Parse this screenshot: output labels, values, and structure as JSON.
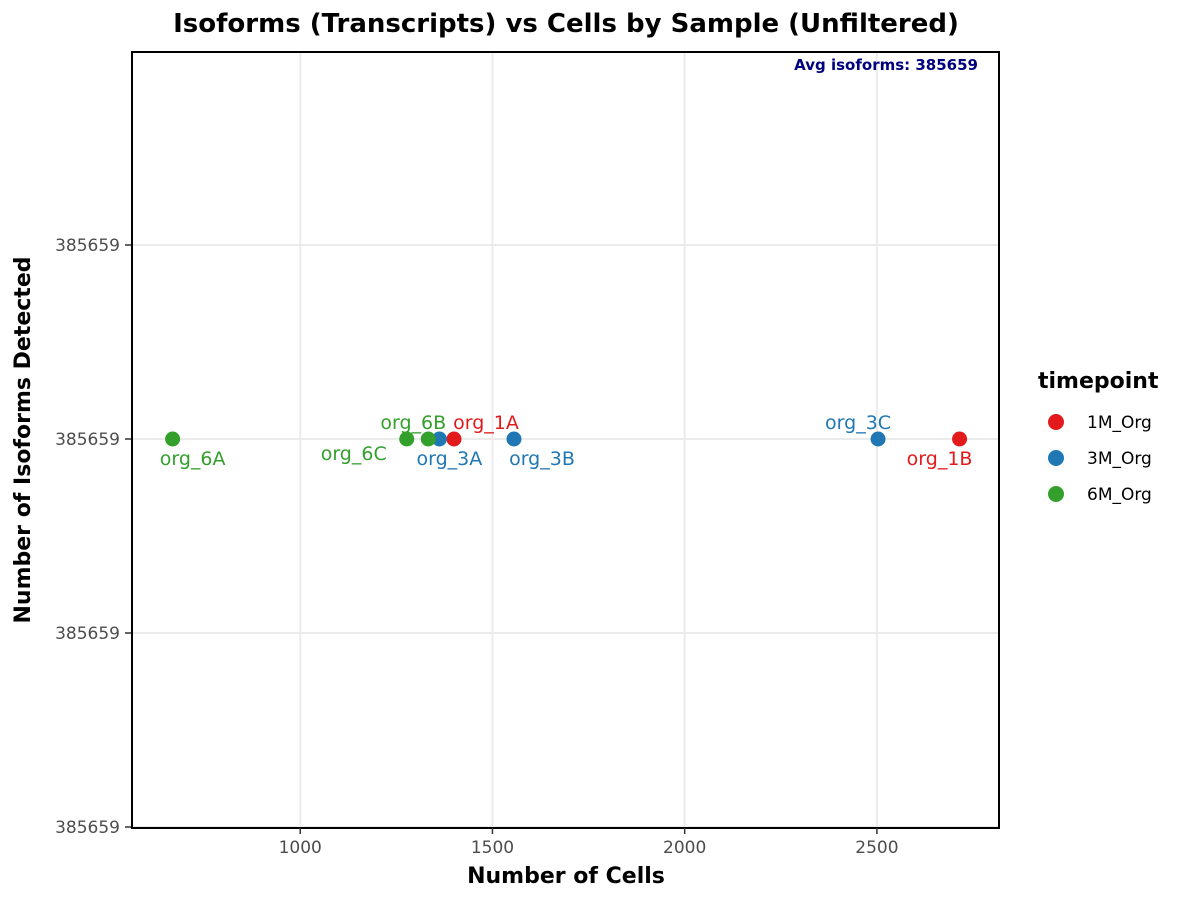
{
  "chart_data": {
    "type": "scatter",
    "title": "Isoforms (Transcripts) vs Cells by Sample (Unfiltered)",
    "xlabel": "Number of Cells",
    "ylabel": "Number of Isoforms Detected",
    "xlim": [
      565,
      2815
    ],
    "x_ticks": [
      1000,
      1500,
      2000,
      2500
    ],
    "y_tick_labels": [
      "385659",
      "385659",
      "385659",
      "385659"
    ],
    "grid": true,
    "annotation": "Avg isoforms: 385659",
    "legend": {
      "title": "timepoint",
      "placement": "right",
      "entries": [
        {
          "label": "1M_Org",
          "color": "#e31a1c"
        },
        {
          "label": "3M_Org",
          "color": "#1f78b4"
        },
        {
          "label": "6M_Org",
          "color": "#33a02c"
        }
      ]
    },
    "series": [
      {
        "name": "1M_Org",
        "color": "#e31a1c",
        "points": [
          {
            "label": "org_1A",
            "x": 1400,
            "y": 385659
          },
          {
            "label": "org_1B",
            "x": 2715,
            "y": 385659
          }
        ]
      },
      {
        "name": "3M_Org",
        "color": "#1f78b4",
        "points": [
          {
            "label": "org_3A",
            "x": 1362,
            "y": 385659
          },
          {
            "label": "org_3B",
            "x": 1556,
            "y": 385659
          },
          {
            "label": "org_3C",
            "x": 2503,
            "y": 385659
          }
        ]
      },
      {
        "name": "6M_Org",
        "color": "#33a02c",
        "points": [
          {
            "label": "org_6A",
            "x": 668,
            "y": 385659
          },
          {
            "label": "org_6B",
            "x": 1333,
            "y": 385659
          },
          {
            "label": "org_6C",
            "x": 1277,
            "y": 385659
          }
        ]
      }
    ]
  }
}
